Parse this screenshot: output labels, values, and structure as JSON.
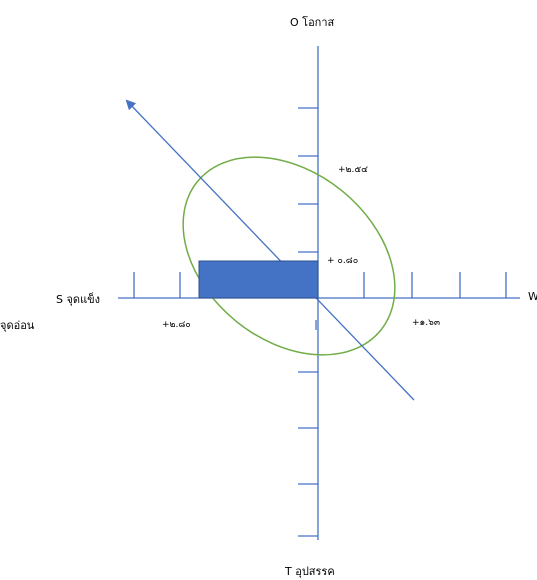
{
  "axes": {
    "top_label": "O โอกาส",
    "bottom_label": "T อุปสรรค",
    "left_label": "S จุดแข็ง",
    "left_sub_label": "จุดอ่อน",
    "right_label": "W"
  },
  "values": {
    "upper_y": "+๒.๕๔",
    "lower_y": "+ ๐.๘๐",
    "left_x": "+๒.๘๐",
    "right_x": "+๑.๖๓"
  },
  "colors": {
    "axis": "#4472c4",
    "rectangle": "#4472c4",
    "ellipse": "#70ad47",
    "arrow": "#4472c4"
  }
}
